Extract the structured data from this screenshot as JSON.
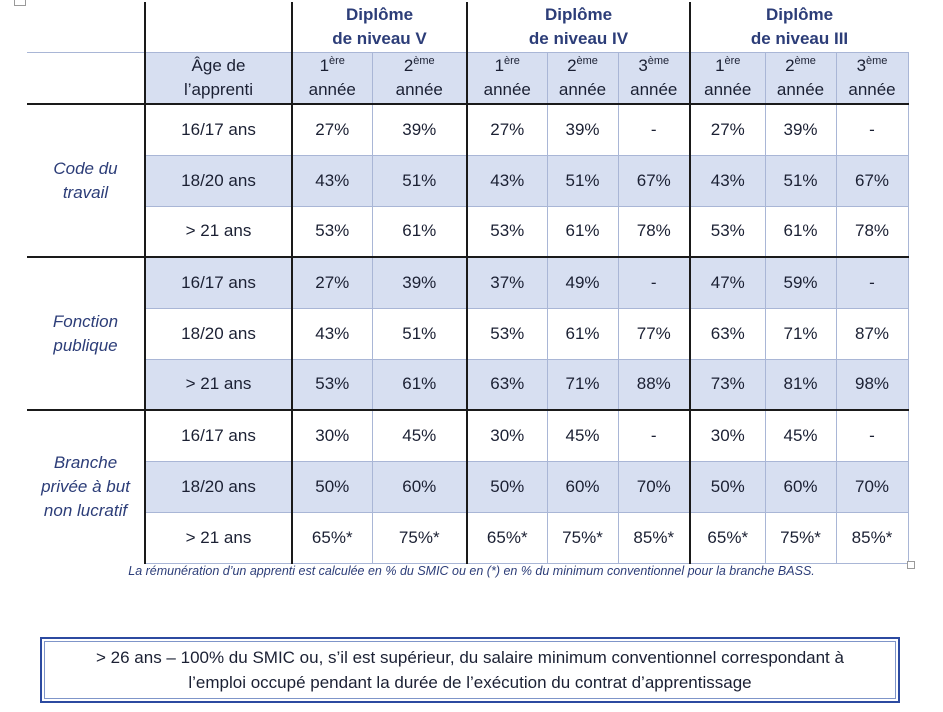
{
  "table": {
    "diplomes": [
      {
        "line1": "Diplôme",
        "line2": "de niveau V"
      },
      {
        "line1": "Diplôme",
        "line2": "de niveau IV"
      },
      {
        "line1": "Diplôme",
        "line2": "de niveau III"
      }
    ],
    "age_header": {
      "line1": "Âge de",
      "line2": "l’apprenti"
    },
    "years": [
      {
        "num": "1",
        "sup": "ère",
        "word": "année"
      },
      {
        "num": "2",
        "sup": "ème",
        "word": "année"
      },
      {
        "num": "1",
        "sup": "ère",
        "word": "année"
      },
      {
        "num": "2",
        "sup": "ème",
        "word": "année"
      },
      {
        "num": "3",
        "sup": "ème",
        "word": "année"
      },
      {
        "num": "1",
        "sup": "ère",
        "word": "année"
      },
      {
        "num": "2",
        "sup": "ème",
        "word": "année"
      },
      {
        "num": "3",
        "sup": "ème",
        "word": "année"
      }
    ],
    "groups": [
      {
        "lines": [
          "Code du",
          "travail"
        ],
        "rows": [
          {
            "age": "16/17 ans",
            "values": [
              "27%",
              "39%",
              "27%",
              "39%",
              "-",
              "27%",
              "39%",
              "-"
            ]
          },
          {
            "age": "18/20 ans",
            "values": [
              "43%",
              "51%",
              "43%",
              "51%",
              "67%",
              "43%",
              "51%",
              "67%"
            ]
          },
          {
            "age": "> 21 ans",
            "values": [
              "53%",
              "61%",
              "53%",
              "61%",
              "78%",
              "53%",
              "61%",
              "78%"
            ]
          }
        ]
      },
      {
        "lines": [
          "Fonction",
          "publique"
        ],
        "rows": [
          {
            "age": "16/17 ans",
            "values": [
              "27%",
              "39%",
              "37%",
              "49%",
              "-",
              "47%",
              "59%",
              "-"
            ]
          },
          {
            "age": "18/20 ans",
            "values": [
              "43%",
              "51%",
              "53%",
              "61%",
              "77%",
              "63%",
              "71%",
              "87%"
            ]
          },
          {
            "age": "> 21 ans",
            "values": [
              "53%",
              "61%",
              "63%",
              "71%",
              "88%",
              "73%",
              "81%",
              "98%"
            ]
          }
        ]
      },
      {
        "lines": [
          "Branche",
          "privée à but",
          "non lucratif"
        ],
        "rows": [
          {
            "age": "16/17 ans",
            "values": [
              "30%",
              "45%",
              "30%",
              "45%",
              "-",
              "30%",
              "45%",
              "-"
            ]
          },
          {
            "age": "18/20 ans",
            "values": [
              "50%",
              "60%",
              "50%",
              "60%",
              "70%",
              "50%",
              "60%",
              "70%"
            ]
          },
          {
            "age": "> 21 ans",
            "values": [
              "65%*",
              "75%*",
              "65%*",
              "75%*",
              "85%*",
              "65%*",
              "75%*",
              "85%*"
            ]
          }
        ]
      }
    ]
  },
  "caption": "La rémunération d’un apprenti est calculée en % du SMIC ou en (*) en % du minimum conventionnel pour la branche BASS.",
  "note": {
    "line1": "> 26 ans – 100% du SMIC ou, s’il est supérieur, du salaire minimum conventionnel correspondant à",
    "line2": "l’emploi occupé pendant la durée de l’exécution du contrat d’apprentissage"
  }
}
